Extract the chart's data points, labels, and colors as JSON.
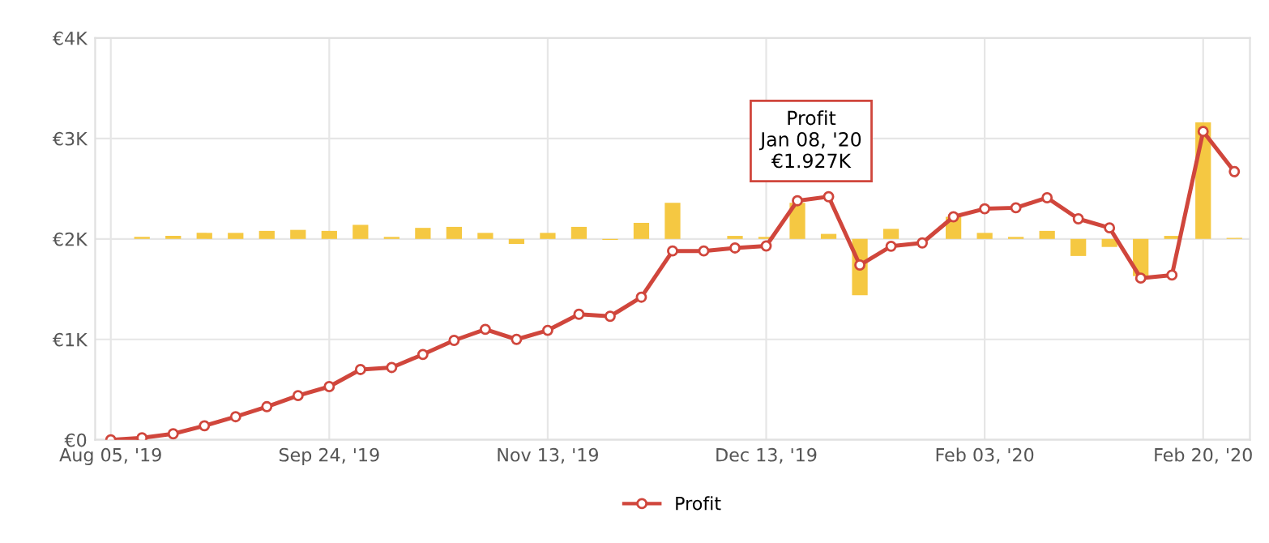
{
  "chart_data": {
    "type": "line",
    "categories": [
      "Aug 05, '19",
      null,
      null,
      null,
      null,
      null,
      null,
      "Sep 24, '19",
      null,
      null,
      null,
      null,
      null,
      null,
      "Nov 13, '19",
      null,
      null,
      null,
      null,
      null,
      null,
      "Dec 13, '19",
      null,
      null,
      null,
      null,
      null,
      null,
      "Feb 03, '20",
      null,
      null,
      null,
      null,
      null,
      null,
      "Feb 20, '20",
      null
    ],
    "series": [
      {
        "type": "bar",
        "color": "#f5c842",
        "base": [
          null,
          2,
          2,
          2,
          2,
          2,
          2,
          2,
          2,
          2,
          2,
          2,
          2,
          2,
          2,
          2,
          2,
          2,
          2,
          null,
          2,
          2,
          2,
          2,
          2,
          2,
          null,
          2,
          2,
          2,
          2,
          2,
          2,
          2,
          2,
          2,
          2
        ],
        "values": [
          null,
          0.02,
          0.03,
          0.06,
          0.06,
          0.08,
          0.09,
          0.08,
          0.14,
          0.02,
          0.11,
          0.12,
          0.06,
          -0.05,
          0.06,
          0.12,
          -0.01,
          0.16,
          0.36,
          null,
          0.03,
          0.02,
          0.36,
          0.05,
          -0.56,
          0.1,
          null,
          0.22,
          0.06,
          0.02,
          0.08,
          -0.17,
          -0.08,
          -0.37,
          0.03,
          1.16,
          0.01
        ]
      },
      {
        "name": "Profit",
        "color": "#d0463c",
        "marker": "circle",
        "values": [
          0.0,
          0.02,
          0.06,
          0.14,
          0.23,
          0.33,
          0.44,
          0.53,
          0.7,
          0.72,
          0.85,
          0.99,
          1.1,
          1.0,
          1.09,
          1.25,
          1.23,
          1.42,
          1.88,
          1.88,
          1.91,
          1.93,
          2.38,
          2.42,
          1.74,
          1.927,
          1.96,
          2.22,
          2.3,
          2.31,
          2.41,
          2.2,
          2.11,
          1.61,
          1.64,
          3.07,
          2.67
        ]
      }
    ],
    "ylim": [
      0,
      4
    ],
    "yticks": [
      {
        "value": 0,
        "label": "€0"
      },
      {
        "value": 1,
        "label": "€1K"
      },
      {
        "value": 2,
        "label": "€2K"
      },
      {
        "value": 3,
        "label": "€3K"
      },
      {
        "value": 4,
        "label": "€4K"
      }
    ],
    "grid": true,
    "legend": "bottom",
    "annotations": [
      "Profit\nJan 08, '20\n€1.927K"
    ]
  }
}
